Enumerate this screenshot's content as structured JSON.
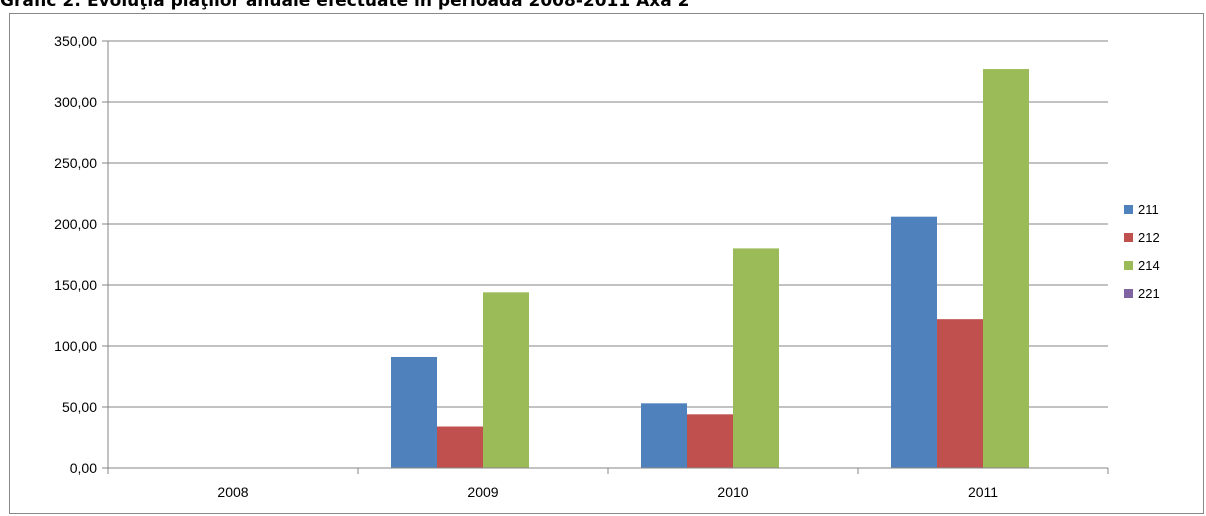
{
  "chart_data": {
    "type": "bar",
    "title": "Grafic 2: Evoluţia plăţilor anuale efectuate în perioada 2008-2011 Axa 2",
    "xlabel": "",
    "ylabel": "",
    "categories": [
      "2008",
      "2009",
      "2010",
      "2011"
    ],
    "series": [
      {
        "name": "211",
        "color": "#4F81BD",
        "values": [
          0,
          91,
          53,
          206
        ]
      },
      {
        "name": "212",
        "color": "#C0504D",
        "values": [
          0,
          34,
          44,
          122
        ]
      },
      {
        "name": "214",
        "color": "#9BBB59",
        "values": [
          0,
          144,
          180,
          327
        ]
      },
      {
        "name": "221",
        "color": "#8064A2",
        "values": [
          0,
          0,
          0,
          0
        ]
      }
    ],
    "ylim": [
      0,
      350
    ],
    "yticks": [
      "0,00",
      "50,00",
      "100,00",
      "150,00",
      "200,00",
      "250,00",
      "300,00",
      "350,00"
    ],
    "grid": true,
    "legend": "right"
  }
}
